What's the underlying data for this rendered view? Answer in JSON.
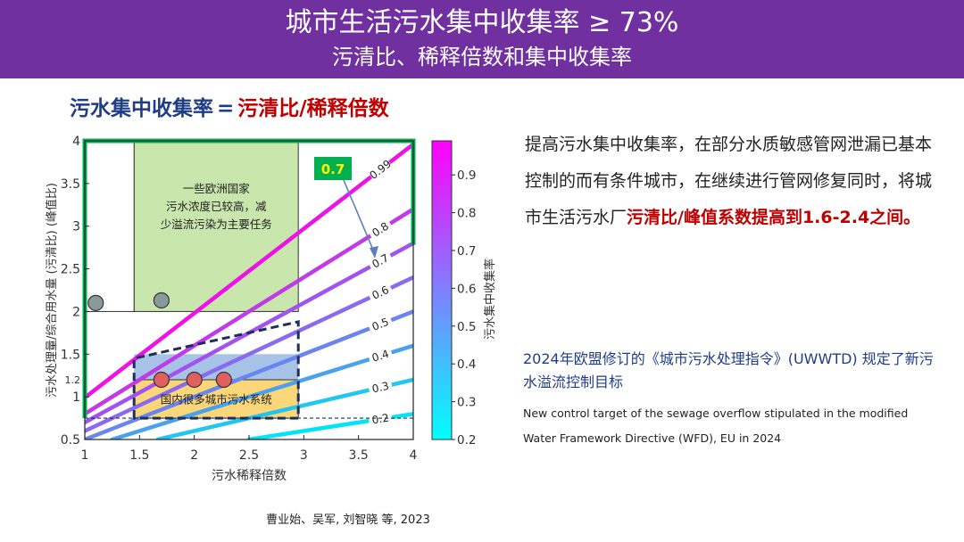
{
  "header": {
    "title": "城市生活污水集中收集率 ≥ 73%",
    "subtitle": "污清比、稀释倍数和集中收集率",
    "bg_color": "#7030a0"
  },
  "formula": {
    "lhs": "污水集中收集率",
    "eq": "=",
    "rhs": "污清比/稀释倍数"
  },
  "chart_data": {
    "type": "line",
    "subtype": "contour",
    "xlabel": "污水稀释倍数",
    "ylabel": "污水处理量/综合用水量 (污清比) (峰值比)",
    "xlim": [
      1,
      4
    ],
    "ylim": [
      0.5,
      4
    ],
    "xticks": [
      "1",
      "1.5",
      "2",
      "2.5",
      "3",
      "3.5",
      "4"
    ],
    "yticks": [
      "0.5",
      "1",
      "1.5",
      "2",
      "2.5",
      "3",
      "3.5",
      "4"
    ],
    "ytick_extra": "1.2",
    "grid": false,
    "contours": [
      {
        "level": 0.2,
        "label": "0.2",
        "color": "#00e5f5"
      },
      {
        "level": 0.3,
        "label": "0.3",
        "color": "#22c6f0"
      },
      {
        "level": 0.4,
        "label": "0.4",
        "color": "#4aa2ee"
      },
      {
        "level": 0.5,
        "label": "0.5",
        "color": "#6a86ee"
      },
      {
        "level": 0.6,
        "label": "0.6",
        "color": "#8a6aee"
      },
      {
        "level": 0.7,
        "label": "0.7",
        "color": "#a252ee"
      },
      {
        "level": 0.8,
        "label": "0.8",
        "color": "#c03ae8"
      },
      {
        "level": 0.99,
        "label": "0.99",
        "color": "#ee12e6"
      }
    ],
    "colorbar": {
      "label": "污水集中收集率",
      "ticks": [
        "0.2",
        "0.3",
        "0.4",
        "0.5",
        "0.6",
        "0.7",
        "0.8",
        "0.9"
      ],
      "range": [
        0.2,
        0.99
      ],
      "color_low": "#00ffff",
      "color_high": "#ff00ff"
    },
    "europe_box": {
      "x": [
        1.45,
        2.95
      ],
      "y": [
        2,
        4
      ],
      "text": [
        "一些欧洲国家",
        "污水浓度已较高，减",
        "少溢流污染为主要任务"
      ],
      "color": "#c9e6ad"
    },
    "domestic_box": {
      "x": [
        1.45,
        2.95
      ],
      "y": [
        0.75,
        1.2
      ],
      "text": "国内很多城市污水系统",
      "color": "#fbd77a"
    },
    "blue_box": {
      "x": [
        1.45,
        2.95
      ],
      "y": [
        1.2,
        1.5
      ],
      "color": "#9dbde6"
    },
    "target_region": {
      "x": [
        1.45,
        2.95
      ],
      "y": [
        0.75,
        1.88
      ]
    },
    "annotation_box": {
      "label": "0.7",
      "bg": "#00b050",
      "fg": "#ffff00"
    },
    "points_gray": [
      {
        "x": 1.1,
        "y": 2.1
      },
      {
        "x": 1.7,
        "y": 2.13
      }
    ],
    "points_red": [
      {
        "x": 1.7,
        "y": 1.2
      },
      {
        "x": 2.0,
        "y": 1.2
      },
      {
        "x": 2.27,
        "y": 1.2
      }
    ],
    "green_boundary_color": "#00b050"
  },
  "paragraph": {
    "pre": "提高污水集中收集率，在部分水质敏感管网泄漏已基本控制的而有条件城市，在继续进行管网修复同时，将城市生活污水厂",
    "highlight": "污清比/峰值系数提高到1.6-2.4之间。"
  },
  "eu": {
    "zh": "2024年欧盟修订的《城市污水处理指令》(UWWTD) 规定了新污水溢流控制目标",
    "en": "New control target of the sewage overflow stipulated in the modified Water Framework Directive (WFD), EU in 2024"
  },
  "citation": "曹业始、吴军, 刘智晓 等, 2023"
}
